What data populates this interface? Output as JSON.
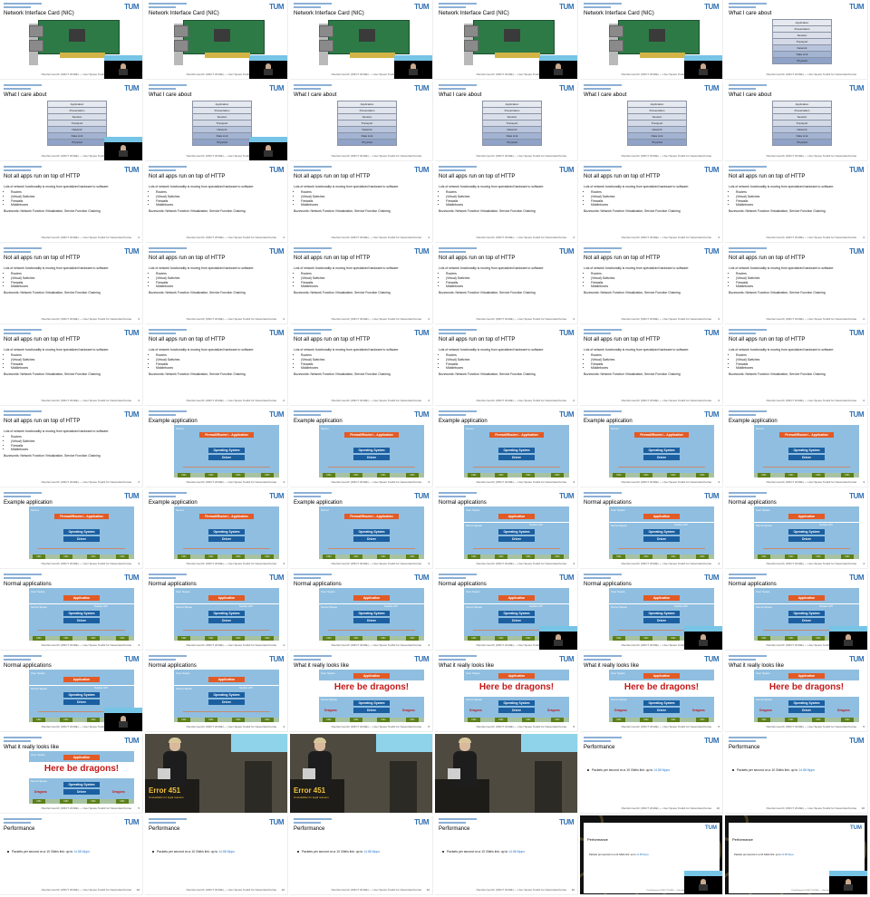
{
  "footer_text": "Paul Emmerich (ORCT 2019E) — User Space Toolkit for Networkarchutras",
  "tum_logo": "TUM",
  "accent_color": "#3070b3",
  "slides": {
    "nic": {
      "title": "Network Interface Card (NIC)"
    },
    "care": {
      "title": "What I care about",
      "levels": [
        "Application",
        "Presentation",
        "Session",
        "Transport",
        "Network",
        "Data Link",
        "Physical"
      ]
    },
    "http": {
      "title": "Not all apps run on top of HTTP",
      "lead": "Lots of network functionality is moving from specialized hardware to software:",
      "bullets": [
        "Routers",
        "(Virtual) Switches",
        "Firewalls",
        "Middleboxes"
      ],
      "buzz": "Buzzwords: Network Function Virtualization, Service Function Chaining"
    },
    "example": {
      "title": "Example application",
      "server": "Server",
      "app": "Firewall/Router/... Application",
      "os": "Operating System",
      "driver": "Driver",
      "nic": "NIC"
    },
    "normal": {
      "title": "Normal applications",
      "user_space": "User Space",
      "kernel_space": "Kernel Space",
      "app": "Application",
      "os": "Operating System",
      "driver": "Driver",
      "nic": "NIC",
      "socket": "Socket API"
    },
    "dragons": {
      "title": "What it really looks like",
      "user_space": "User Space",
      "kernel_space": "Kernel Space",
      "app": "Application",
      "os": "Operating System",
      "driver": "Driver",
      "nic": "NIC",
      "warning": "Here be dragons!",
      "dragon": "Dragons"
    },
    "photo": {
      "error_code": "Error 451",
      "error_text": "Unavailable for legal reasons"
    },
    "perf": {
      "title": "Performance",
      "line_prefix": "Packets per second on a 10 Gbit/s link: up to",
      "value": "14.88 Mpps"
    }
  },
  "cells": [
    {
      "type": "nic",
      "speaker": true
    },
    {
      "type": "nic",
      "speaker": true
    },
    {
      "type": "nic",
      "speaker": true
    },
    {
      "type": "nic",
      "speaker": true
    },
    {
      "type": "nic",
      "speaker": true
    },
    {
      "type": "care",
      "speaker": false
    },
    {
      "type": "care",
      "speaker": true
    },
    {
      "type": "care",
      "speaker": true
    },
    {
      "type": "care",
      "speaker": false
    },
    {
      "type": "care",
      "speaker": false
    },
    {
      "type": "care",
      "speaker": false
    },
    {
      "type": "care",
      "speaker": false
    },
    {
      "type": "http",
      "speaker": false,
      "page": "2"
    },
    {
      "type": "http",
      "speaker": false,
      "page": "2"
    },
    {
      "type": "http",
      "speaker": false,
      "page": "2"
    },
    {
      "type": "http",
      "speaker": false,
      "page": "2"
    },
    {
      "type": "http",
      "speaker": false,
      "page": "2"
    },
    {
      "type": "http",
      "speaker": false,
      "page": "2"
    },
    {
      "type": "http",
      "speaker": false,
      "page": "2"
    },
    {
      "type": "http",
      "speaker": false,
      "page": "2"
    },
    {
      "type": "http",
      "speaker": false,
      "page": "2"
    },
    {
      "type": "http",
      "speaker": false,
      "page": "2"
    },
    {
      "type": "http",
      "speaker": false,
      "page": "2"
    },
    {
      "type": "http",
      "speaker": false,
      "page": "2"
    },
    {
      "type": "http",
      "speaker": false,
      "page": "2"
    },
    {
      "type": "http",
      "speaker": false,
      "page": "2"
    },
    {
      "type": "http",
      "speaker": false,
      "page": "2"
    },
    {
      "type": "http",
      "speaker": false,
      "page": "2"
    },
    {
      "type": "http",
      "speaker": false,
      "page": "2"
    },
    {
      "type": "http",
      "speaker": false,
      "page": "2"
    },
    {
      "type": "http",
      "speaker": false,
      "page": "2"
    },
    {
      "type": "example",
      "speaker": false,
      "page": "3"
    },
    {
      "type": "example",
      "speaker": false,
      "page": "3"
    },
    {
      "type": "example",
      "speaker": false,
      "page": "3"
    },
    {
      "type": "example",
      "speaker": false,
      "page": "3"
    },
    {
      "type": "example",
      "speaker": false,
      "page": "3"
    },
    {
      "type": "example",
      "speaker": false,
      "page": "3"
    },
    {
      "type": "example",
      "speaker": false,
      "page": "3"
    },
    {
      "type": "example",
      "speaker": false,
      "page": "3"
    },
    {
      "type": "normal",
      "speaker": false,
      "page": "4"
    },
    {
      "type": "normal",
      "speaker": false,
      "page": "4"
    },
    {
      "type": "normal",
      "speaker": false,
      "page": "4"
    },
    {
      "type": "normal",
      "speaker": false,
      "page": "4"
    },
    {
      "type": "normal",
      "speaker": false,
      "page": "4"
    },
    {
      "type": "normal",
      "speaker": false,
      "page": "4"
    },
    {
      "type": "normal",
      "speaker": true,
      "page": "4"
    },
    {
      "type": "normal",
      "speaker": true,
      "page": "4"
    },
    {
      "type": "normal",
      "speaker": true,
      "page": "4"
    },
    {
      "type": "normal",
      "speaker": true,
      "page": "4"
    },
    {
      "type": "normal",
      "speaker": false,
      "page": "4"
    },
    {
      "type": "dragons",
      "speaker": false,
      "page": "5"
    },
    {
      "type": "dragons",
      "speaker": false,
      "page": "5"
    },
    {
      "type": "dragons",
      "speaker": false,
      "page": "5"
    },
    {
      "type": "dragons",
      "speaker": false,
      "page": "5"
    },
    {
      "type": "dragons",
      "speaker": false,
      "page": "5"
    },
    {
      "type": "photo"
    },
    {
      "type": "photo"
    },
    {
      "type": "photo2"
    },
    {
      "type": "perf",
      "speaker": false,
      "page": "10"
    },
    {
      "type": "perf",
      "speaker": false,
      "page": "10"
    },
    {
      "type": "perf",
      "speaker": false,
      "page": "10"
    },
    {
      "type": "perf",
      "speaker": false,
      "page": "10"
    },
    {
      "type": "perf",
      "speaker": false,
      "page": "10"
    },
    {
      "type": "perf",
      "speaker": false,
      "page": "10"
    },
    {
      "type": "dark",
      "speaker": true
    },
    {
      "type": "dark",
      "speaker": true
    }
  ]
}
